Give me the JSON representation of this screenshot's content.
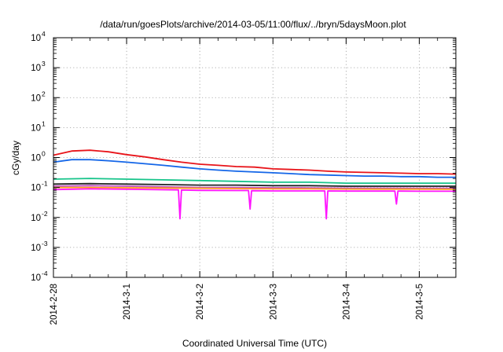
{
  "chart_data": {
    "type": "line",
    "title": "/data/run/goesPlots/archive/2014-03-05/11:00/flux/../bryn/5daysMoon.plot",
    "xlabel": "Coordinated Universal Time (UTC)",
    "ylabel": "cGy/day",
    "y_scale": "log",
    "ylim": [
      0.0001,
      10000
    ],
    "xlim": [
      "2014-02-28 00:00",
      "2014-03-05 12:00"
    ],
    "grid": "dotted",
    "legend": "none",
    "x_ticks": [
      "2014-2-28",
      "2014-3-1",
      "2014-3-2",
      "2014-3-3",
      "2014-3-4",
      "2014-3-5"
    ],
    "y_ticks": [
      {
        "value": 0.0001,
        "base": "10",
        "exp": "-4"
      },
      {
        "value": 0.001,
        "base": "10",
        "exp": "-3"
      },
      {
        "value": 0.01,
        "base": "10",
        "exp": "-2"
      },
      {
        "value": 0.1,
        "base": "10",
        "exp": "-1"
      },
      {
        "value": 1,
        "base": "10",
        "exp": "0"
      },
      {
        "value": 10,
        "base": "10",
        "exp": "1"
      },
      {
        "value": 100,
        "base": "10",
        "exp": "2"
      },
      {
        "value": 1000,
        "base": "10",
        "exp": "3"
      },
      {
        "value": 10000,
        "base": "10",
        "exp": "4"
      }
    ],
    "series": [
      {
        "color": "#e8141a",
        "x": [
          "2014-02-28 00:00",
          "2014-02-28 06:00",
          "2014-02-28 12:00",
          "2014-02-28 18:00",
          "2014-03-01 00:00",
          "2014-03-01 06:00",
          "2014-03-01 12:00",
          "2014-03-01 18:00",
          "2014-03-02 00:00",
          "2014-03-02 06:00",
          "2014-03-02 12:00",
          "2014-03-02 18:00",
          "2014-03-03 00:00",
          "2014-03-03 06:00",
          "2014-03-03 12:00",
          "2014-03-03 18:00",
          "2014-03-04 00:00",
          "2014-03-04 06:00",
          "2014-03-04 12:00",
          "2014-03-04 18:00",
          "2014-03-05 00:00",
          "2014-03-05 06:00",
          "2014-03-05 12:00"
        ],
        "y": [
          1.2,
          1.65,
          1.75,
          1.55,
          1.25,
          1.05,
          0.85,
          0.7,
          0.6,
          0.55,
          0.5,
          0.48,
          0.42,
          0.4,
          0.38,
          0.35,
          0.33,
          0.32,
          0.31,
          0.3,
          0.29,
          0.29,
          0.28
        ]
      },
      {
        "color": "#1466e8",
        "x": [
          "2014-02-28 00:00",
          "2014-02-28 06:00",
          "2014-02-28 12:00",
          "2014-02-28 18:00",
          "2014-03-01 00:00",
          "2014-03-01 06:00",
          "2014-03-01 12:00",
          "2014-03-01 18:00",
          "2014-03-02 00:00",
          "2014-03-02 06:00",
          "2014-03-02 12:00",
          "2014-03-02 18:00",
          "2014-03-03 00:00",
          "2014-03-03 06:00",
          "2014-03-03 12:00",
          "2014-03-03 18:00",
          "2014-03-04 00:00",
          "2014-03-04 06:00",
          "2014-03-04 12:00",
          "2014-03-04 18:00",
          "2014-03-05 00:00",
          "2014-03-05 06:00",
          "2014-03-05 12:00"
        ],
        "y": [
          0.7,
          0.85,
          0.85,
          0.78,
          0.7,
          0.62,
          0.55,
          0.48,
          0.42,
          0.38,
          0.35,
          0.33,
          0.31,
          0.29,
          0.27,
          0.26,
          0.25,
          0.24,
          0.24,
          0.23,
          0.23,
          0.22,
          0.22
        ]
      },
      {
        "color": "#16c48a",
        "x": [
          "2014-02-28 00:00",
          "2014-02-28 12:00",
          "2014-03-01 00:00",
          "2014-03-01 12:00",
          "2014-03-02 00:00",
          "2014-03-02 12:00",
          "2014-03-03 00:00",
          "2014-03-03 12:00",
          "2014-03-04 00:00",
          "2014-03-04 12:00",
          "2014-03-05 00:00",
          "2014-03-05 12:00"
        ],
        "y": [
          0.19,
          0.2,
          0.19,
          0.18,
          0.17,
          0.16,
          0.15,
          0.15,
          0.14,
          0.14,
          0.14,
          0.14
        ]
      },
      {
        "color": "#222222",
        "x": [
          "2014-02-28 00:00",
          "2014-02-28 12:00",
          "2014-03-01 00:00",
          "2014-03-01 12:00",
          "2014-03-02 00:00",
          "2014-03-02 12:00",
          "2014-03-03 00:00",
          "2014-03-03 12:00",
          "2014-03-04 00:00",
          "2014-03-04 12:00",
          "2014-03-05 00:00",
          "2014-03-05 12:00"
        ],
        "y": [
          0.13,
          0.135,
          0.13,
          0.125,
          0.12,
          0.12,
          0.115,
          0.115,
          0.11,
          0.11,
          0.11,
          0.11
        ]
      },
      {
        "color": "#c04dc4",
        "x": [
          "2014-02-28 00:00",
          "2014-02-28 12:00",
          "2014-03-01 00:00",
          "2014-03-01 12:00",
          "2014-03-02 00:00",
          "2014-03-02 12:00",
          "2014-03-03 00:00",
          "2014-03-03 12:00",
          "2014-03-04 00:00",
          "2014-03-04 12:00",
          "2014-03-05 00:00",
          "2014-03-05 12:00"
        ],
        "y": [
          0.11,
          0.115,
          0.11,
          0.105,
          0.1,
          0.1,
          0.098,
          0.097,
          0.095,
          0.095,
          0.094,
          0.094
        ]
      },
      {
        "color": "#ff9e1a",
        "x": [
          "2014-02-28 00:00",
          "2014-02-28 12:00",
          "2014-03-01 00:00",
          "2014-03-01 12:00",
          "2014-03-02 00:00",
          "2014-03-02 12:00",
          "2014-03-03 00:00",
          "2014-03-03 12:00",
          "2014-03-04 00:00",
          "2014-03-04 12:00",
          "2014-03-05 00:00",
          "2014-03-05 12:00"
        ],
        "y": [
          0.1,
          0.1,
          0.098,
          0.096,
          0.094,
          0.092,
          0.09,
          0.09,
          0.089,
          0.088,
          0.088,
          0.087
        ]
      },
      {
        "color": "#ff14ff",
        "x": [
          "2014-02-28 00:00",
          "2014-02-28 12:00",
          "2014-03-01 00:00",
          "2014-03-01 12:00",
          "2014-03-01 17:00",
          "2014-03-01 17:30",
          "2014-03-01 18:00",
          "2014-03-02 00:00",
          "2014-03-02 12:00",
          "2014-03-02 16:00",
          "2014-03-02 16:30",
          "2014-03-02 17:00",
          "2014-03-03 00:00",
          "2014-03-03 12:00",
          "2014-03-03 17:00",
          "2014-03-03 17:30",
          "2014-03-03 18:00",
          "2014-03-04 00:00",
          "2014-03-04 12:00",
          "2014-03-04 16:00",
          "2014-03-04 16:30",
          "2014-03-04 17:00",
          "2014-03-05 00:00",
          "2014-03-05 12:00"
        ],
        "y": [
          0.085,
          0.09,
          0.087,
          0.084,
          0.083,
          0.009,
          0.082,
          0.08,
          0.079,
          0.079,
          0.019,
          0.078,
          0.077,
          0.077,
          0.077,
          0.009,
          0.077,
          0.076,
          0.076,
          0.076,
          0.028,
          0.076,
          0.075,
          0.075
        ]
      }
    ]
  }
}
